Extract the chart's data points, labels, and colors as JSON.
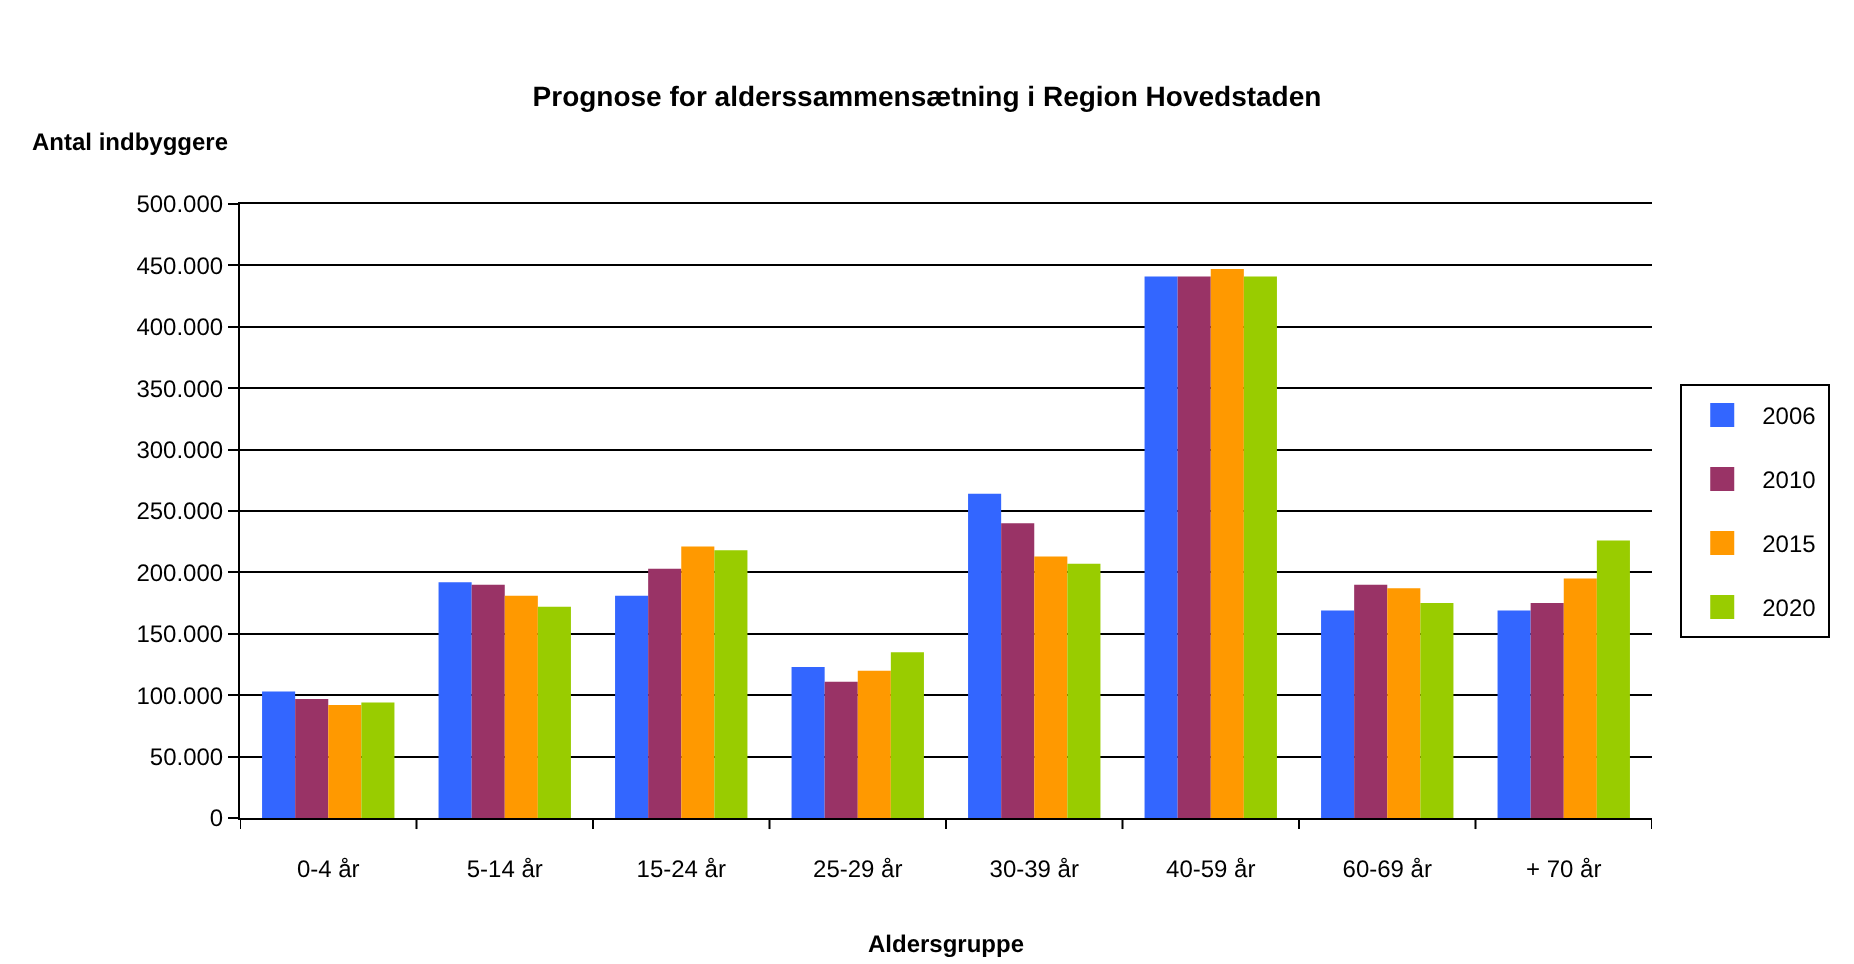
{
  "chart_data": {
    "type": "bar",
    "title": "Prognose for alderssammensætning i Region Hovedstaden",
    "xlabel": "Aldersgruppe",
    "ylabel": "Antal indbyggere",
    "categories": [
      "0-4 år",
      "5-14 år",
      "15-24 år",
      "25-29 år",
      "30-39 år",
      "40-59 år",
      "60-69 år",
      "+ 70 år"
    ],
    "series": [
      {
        "name": "2006",
        "color": "#3366ff",
        "values": [
          103000,
          192000,
          181000,
          123000,
          264000,
          441000,
          169000,
          169000
        ]
      },
      {
        "name": "2010",
        "color": "#993366",
        "values": [
          97000,
          190000,
          203000,
          111000,
          240000,
          441000,
          190000,
          175000
        ]
      },
      {
        "name": "2015",
        "color": "#ff9900",
        "values": [
          92000,
          181000,
          221000,
          120000,
          213000,
          447000,
          187000,
          195000
        ]
      },
      {
        "name": "2020",
        "color": "#99cc00",
        "values": [
          94000,
          172000,
          218000,
          135000,
          207000,
          441000,
          175000,
          226000
        ]
      }
    ],
    "ylim": [
      0,
      500000
    ],
    "yticks": [
      0,
      {
        "value": 50000,
        "label": "50.000"
      },
      {
        "value": 100000,
        "label": "100.000"
      },
      {
        "value": 150000,
        "label": "150.000"
      },
      {
        "value": 200000,
        "label": "200.000"
      },
      {
        "value": 250000,
        "label": "250.000"
      },
      {
        "value": 300000,
        "label": "300.000"
      },
      {
        "value": 350000,
        "label": "350.000"
      },
      {
        "value": 400000,
        "label": "400.000"
      },
      {
        "value": 450000,
        "label": "450.000"
      },
      {
        "value": 500000,
        "label": "500.000"
      }
    ],
    "grid": "y",
    "legend": "right"
  }
}
